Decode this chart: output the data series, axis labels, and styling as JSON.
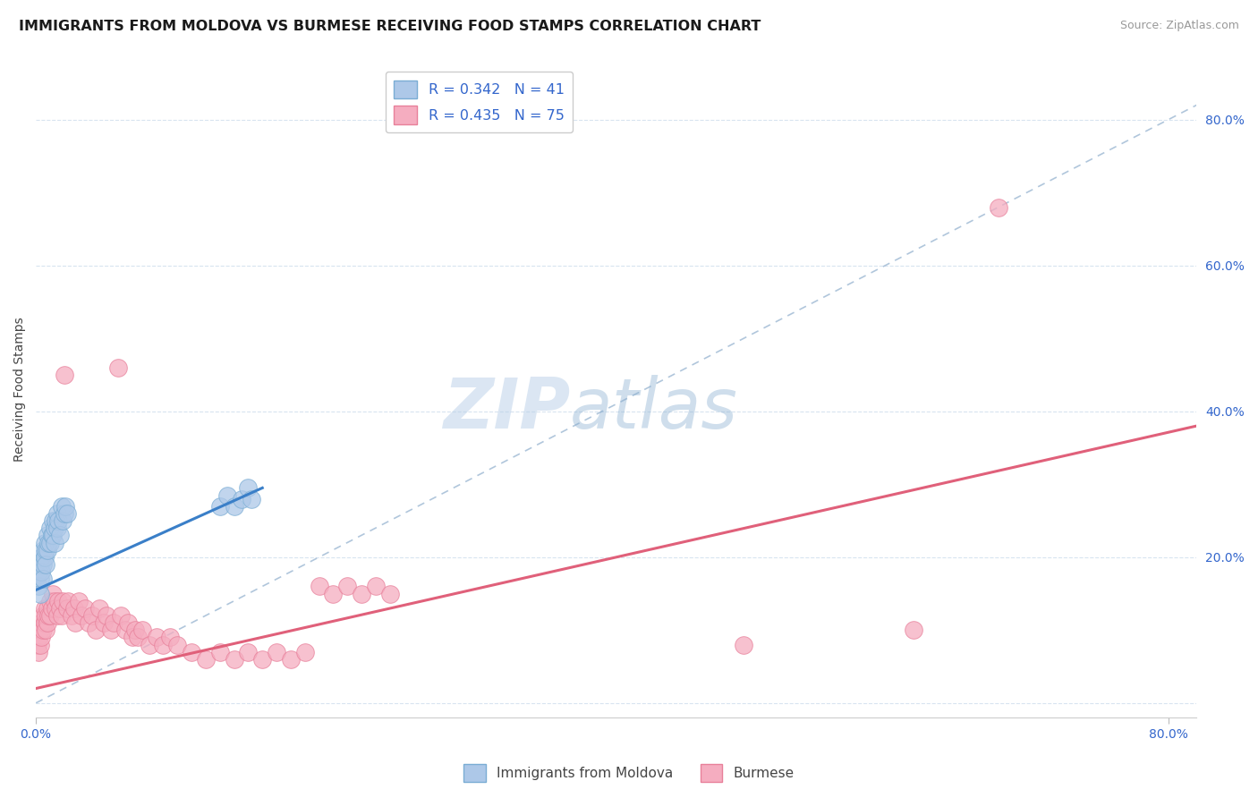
{
  "title": "IMMIGRANTS FROM MOLDOVA VS BURMESE RECEIVING FOOD STAMPS CORRELATION CHART",
  "source": "Source: ZipAtlas.com",
  "ylabel": "Receiving Food Stamps",
  "xlim": [
    0.0,
    0.82
  ],
  "ylim": [
    -0.02,
    0.88
  ],
  "yticks_right": [
    0.0,
    0.2,
    0.4,
    0.6,
    0.8
  ],
  "ytick_right_labels": [
    "",
    "20.0%",
    "40.0%",
    "60.0%",
    "80.0%"
  ],
  "watermark_zip": "ZIP",
  "watermark_atlas": "atlas",
  "legend1_label": "R = 0.342   N = 41",
  "legend2_label": "R = 0.435   N = 75",
  "series1_color": "#adc8e8",
  "series2_color": "#f5adc0",
  "series1_edge": "#7aadd4",
  "series2_edge": "#e8809a",
  "line1_color": "#3a7fc8",
  "line2_color": "#e0607a",
  "diag_color": "#a8c0d8",
  "grid_color": "#d8e4f0",
  "background_color": "#ffffff",
  "moldova_x": [
    0.001,
    0.002,
    0.002,
    0.003,
    0.003,
    0.003,
    0.004,
    0.004,
    0.005,
    0.005,
    0.005,
    0.006,
    0.006,
    0.007,
    0.007,
    0.008,
    0.008,
    0.009,
    0.01,
    0.01,
    0.011,
    0.012,
    0.012,
    0.013,
    0.013,
    0.014,
    0.015,
    0.015,
    0.016,
    0.017,
    0.018,
    0.019,
    0.02,
    0.021,
    0.022,
    0.13,
    0.135,
    0.14,
    0.145,
    0.15,
    0.152
  ],
  "moldova_y": [
    0.175,
    0.18,
    0.16,
    0.19,
    0.17,
    0.15,
    0.2,
    0.18,
    0.21,
    0.19,
    0.17,
    0.22,
    0.2,
    0.21,
    0.19,
    0.23,
    0.21,
    0.22,
    0.24,
    0.22,
    0.23,
    0.25,
    0.23,
    0.24,
    0.22,
    0.25,
    0.26,
    0.24,
    0.25,
    0.23,
    0.27,
    0.25,
    0.26,
    0.27,
    0.26,
    0.27,
    0.285,
    0.27,
    0.28,
    0.295,
    0.28
  ],
  "moldova_line_x": [
    0.0,
    0.16
  ],
  "moldova_line_y": [
    0.155,
    0.295
  ],
  "burmese_x": [
    0.001,
    0.002,
    0.002,
    0.003,
    0.003,
    0.004,
    0.004,
    0.005,
    0.005,
    0.006,
    0.006,
    0.007,
    0.007,
    0.008,
    0.008,
    0.009,
    0.01,
    0.01,
    0.011,
    0.012,
    0.013,
    0.014,
    0.015,
    0.016,
    0.017,
    0.018,
    0.019,
    0.02,
    0.022,
    0.023,
    0.025,
    0.027,
    0.028,
    0.03,
    0.032,
    0.035,
    0.037,
    0.04,
    0.042,
    0.045,
    0.048,
    0.05,
    0.053,
    0.055,
    0.058,
    0.06,
    0.063,
    0.065,
    0.068,
    0.07,
    0.072,
    0.075,
    0.08,
    0.085,
    0.09,
    0.095,
    0.1,
    0.11,
    0.12,
    0.13,
    0.14,
    0.15,
    0.16,
    0.17,
    0.18,
    0.19,
    0.2,
    0.21,
    0.22,
    0.23,
    0.24,
    0.25,
    0.5,
    0.62,
    0.68
  ],
  "burmese_y": [
    0.08,
    0.09,
    0.07,
    0.1,
    0.08,
    0.11,
    0.09,
    0.12,
    0.1,
    0.13,
    0.11,
    0.12,
    0.1,
    0.13,
    0.11,
    0.12,
    0.14,
    0.12,
    0.13,
    0.15,
    0.14,
    0.13,
    0.12,
    0.14,
    0.13,
    0.12,
    0.14,
    0.45,
    0.13,
    0.14,
    0.12,
    0.13,
    0.11,
    0.14,
    0.12,
    0.13,
    0.11,
    0.12,
    0.1,
    0.13,
    0.11,
    0.12,
    0.1,
    0.11,
    0.46,
    0.12,
    0.1,
    0.11,
    0.09,
    0.1,
    0.09,
    0.1,
    0.08,
    0.09,
    0.08,
    0.09,
    0.08,
    0.07,
    0.06,
    0.07,
    0.06,
    0.07,
    0.06,
    0.07,
    0.06,
    0.07,
    0.16,
    0.15,
    0.16,
    0.15,
    0.16,
    0.15,
    0.08,
    0.1,
    0.68
  ],
  "burmese_line_x": [
    0.0,
    0.82
  ],
  "burmese_line_y": [
    0.02,
    0.38
  ]
}
